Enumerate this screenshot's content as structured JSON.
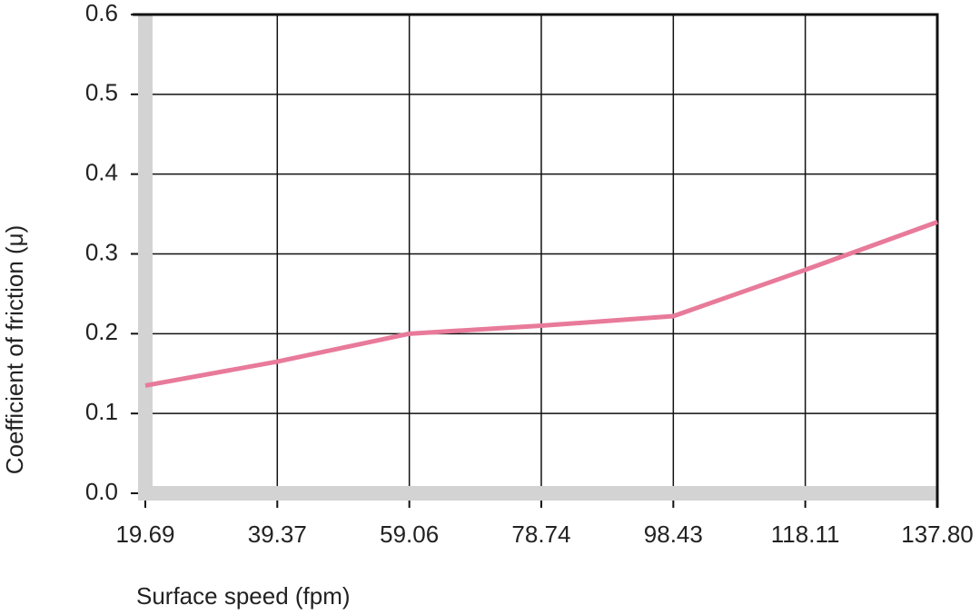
{
  "chart_data": {
    "type": "line",
    "x_label": "Surface speed (fpm)",
    "y_label": "Coefficient of friction (μ)",
    "x": [
      19.69,
      39.37,
      59.06,
      78.74,
      98.43,
      118.11,
      137.8
    ],
    "series": [
      {
        "color": "#e87a9a",
        "values": [
          0.135,
          0.165,
          0.2,
          0.21,
          0.222,
          0.28,
          0.34
        ]
      }
    ],
    "xlim": [
      19.69,
      137.8
    ],
    "xticks": [
      19.69,
      39.37,
      59.06,
      78.74,
      98.43,
      118.11,
      {
        "value": 137.8,
        "label": "137.80"
      }
    ],
    "ylim": [
      0,
      0.6
    ],
    "yticks": [
      {
        "value": 0,
        "label": "0.0"
      },
      0.1,
      0.2,
      0.3,
      0.4,
      0.5,
      0.6
    ],
    "grid": true
  }
}
